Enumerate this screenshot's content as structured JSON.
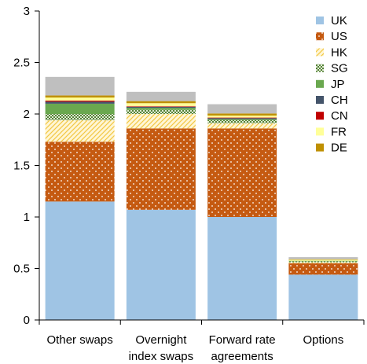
{
  "chart_data": {
    "type": "bar",
    "stacked": true,
    "categories": [
      [
        "Other swaps"
      ],
      [
        "Overnight",
        "index swaps"
      ],
      [
        "Forward rate",
        "agreements"
      ],
      [
        "Options"
      ]
    ],
    "ylim": [
      0,
      3
    ],
    "yticks": [
      "0",
      "0.5",
      "1",
      "1.5",
      "2",
      "2.5",
      "3"
    ],
    "grid": false,
    "legend_position": "top-right",
    "series": [
      {
        "name": "UK",
        "color": "#9fc4e4",
        "pattern": "solid",
        "values": [
          1.15,
          1.07,
          1.0,
          0.44
        ]
      },
      {
        "name": "US",
        "color": "#c55a11",
        "pattern": "dots",
        "values": [
          0.58,
          0.79,
          0.86,
          0.11
        ]
      },
      {
        "name": "HK",
        "color": "#ffd966",
        "pattern": "hatch",
        "values": [
          0.21,
          0.14,
          0.05,
          0.01
        ]
      },
      {
        "name": "SG",
        "color": "#548235",
        "pattern": "check",
        "values": [
          0.06,
          0.04,
          0.03,
          0.01
        ]
      },
      {
        "name": "JP",
        "color": "#6aa84f",
        "pattern": "solid",
        "values": [
          0.1,
          0.02,
          0.01,
          0.005
        ]
      },
      {
        "name": "CH",
        "color": "#44546a",
        "pattern": "solid",
        "values": [
          0.02,
          0.01,
          0.01,
          0.0
        ]
      },
      {
        "name": "CN",
        "color": "#c00000",
        "pattern": "solid",
        "values": [
          0.01,
          0.005,
          0.005,
          0.0
        ]
      },
      {
        "name": "FR",
        "color": "#ffff99",
        "pattern": "solid",
        "values": [
          0.03,
          0.03,
          0.02,
          0.01
        ]
      },
      {
        "name": "DE",
        "color": "#bf9000",
        "pattern": "solid",
        "values": [
          0.02,
          0.02,
          0.02,
          0.005
        ]
      },
      {
        "color": "#bfbfbf",
        "pattern": "solid",
        "values": [
          0.18,
          0.09,
          0.09,
          0.02
        ]
      }
    ]
  }
}
